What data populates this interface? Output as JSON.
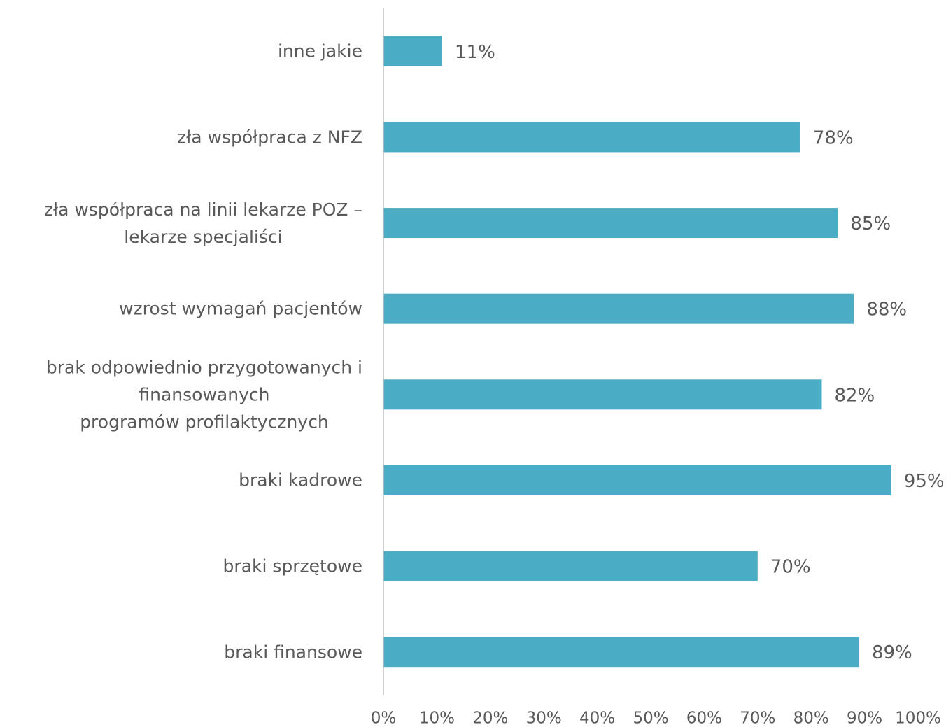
{
  "chart_data": {
    "type": "hbar",
    "categories": [
      "inne jakie",
      "zła współpraca z NFZ",
      "zła współpraca na linii lekarze POZ –\nlekarze specjaliści",
      "wzrost wymagań pacjentów",
      "brak odpowiednio przygotowanych i\nfinansowanych\nprogramów profilaktycznych",
      "braki kadrowe",
      "braki sprzętowe",
      "braki finansowe"
    ],
    "values": [
      11,
      78,
      85,
      88,
      82,
      95,
      70,
      89
    ],
    "value_labels": [
      "11%",
      "78%",
      "85%",
      "88%",
      "82%",
      "95%",
      "70%",
      "89%"
    ],
    "color": "#4bacc6",
    "xlim": [
      0,
      100
    ],
    "xticks": [
      {
        "value": 0,
        "label": "0%"
      },
      {
        "value": 10,
        "label": "10%"
      },
      {
        "value": 20,
        "label": "20%"
      },
      {
        "value": 30,
        "label": "30%"
      },
      {
        "value": 40,
        "label": "40%"
      },
      {
        "value": 50,
        "label": "50%"
      },
      {
        "value": 60,
        "label": "60%"
      },
      {
        "value": 70,
        "label": "70%"
      },
      {
        "value": 80,
        "label": "80%"
      },
      {
        "value": 90,
        "label": "90%"
      },
      {
        "value": 100,
        "label": "100%"
      }
    ],
    "grid": false
  }
}
